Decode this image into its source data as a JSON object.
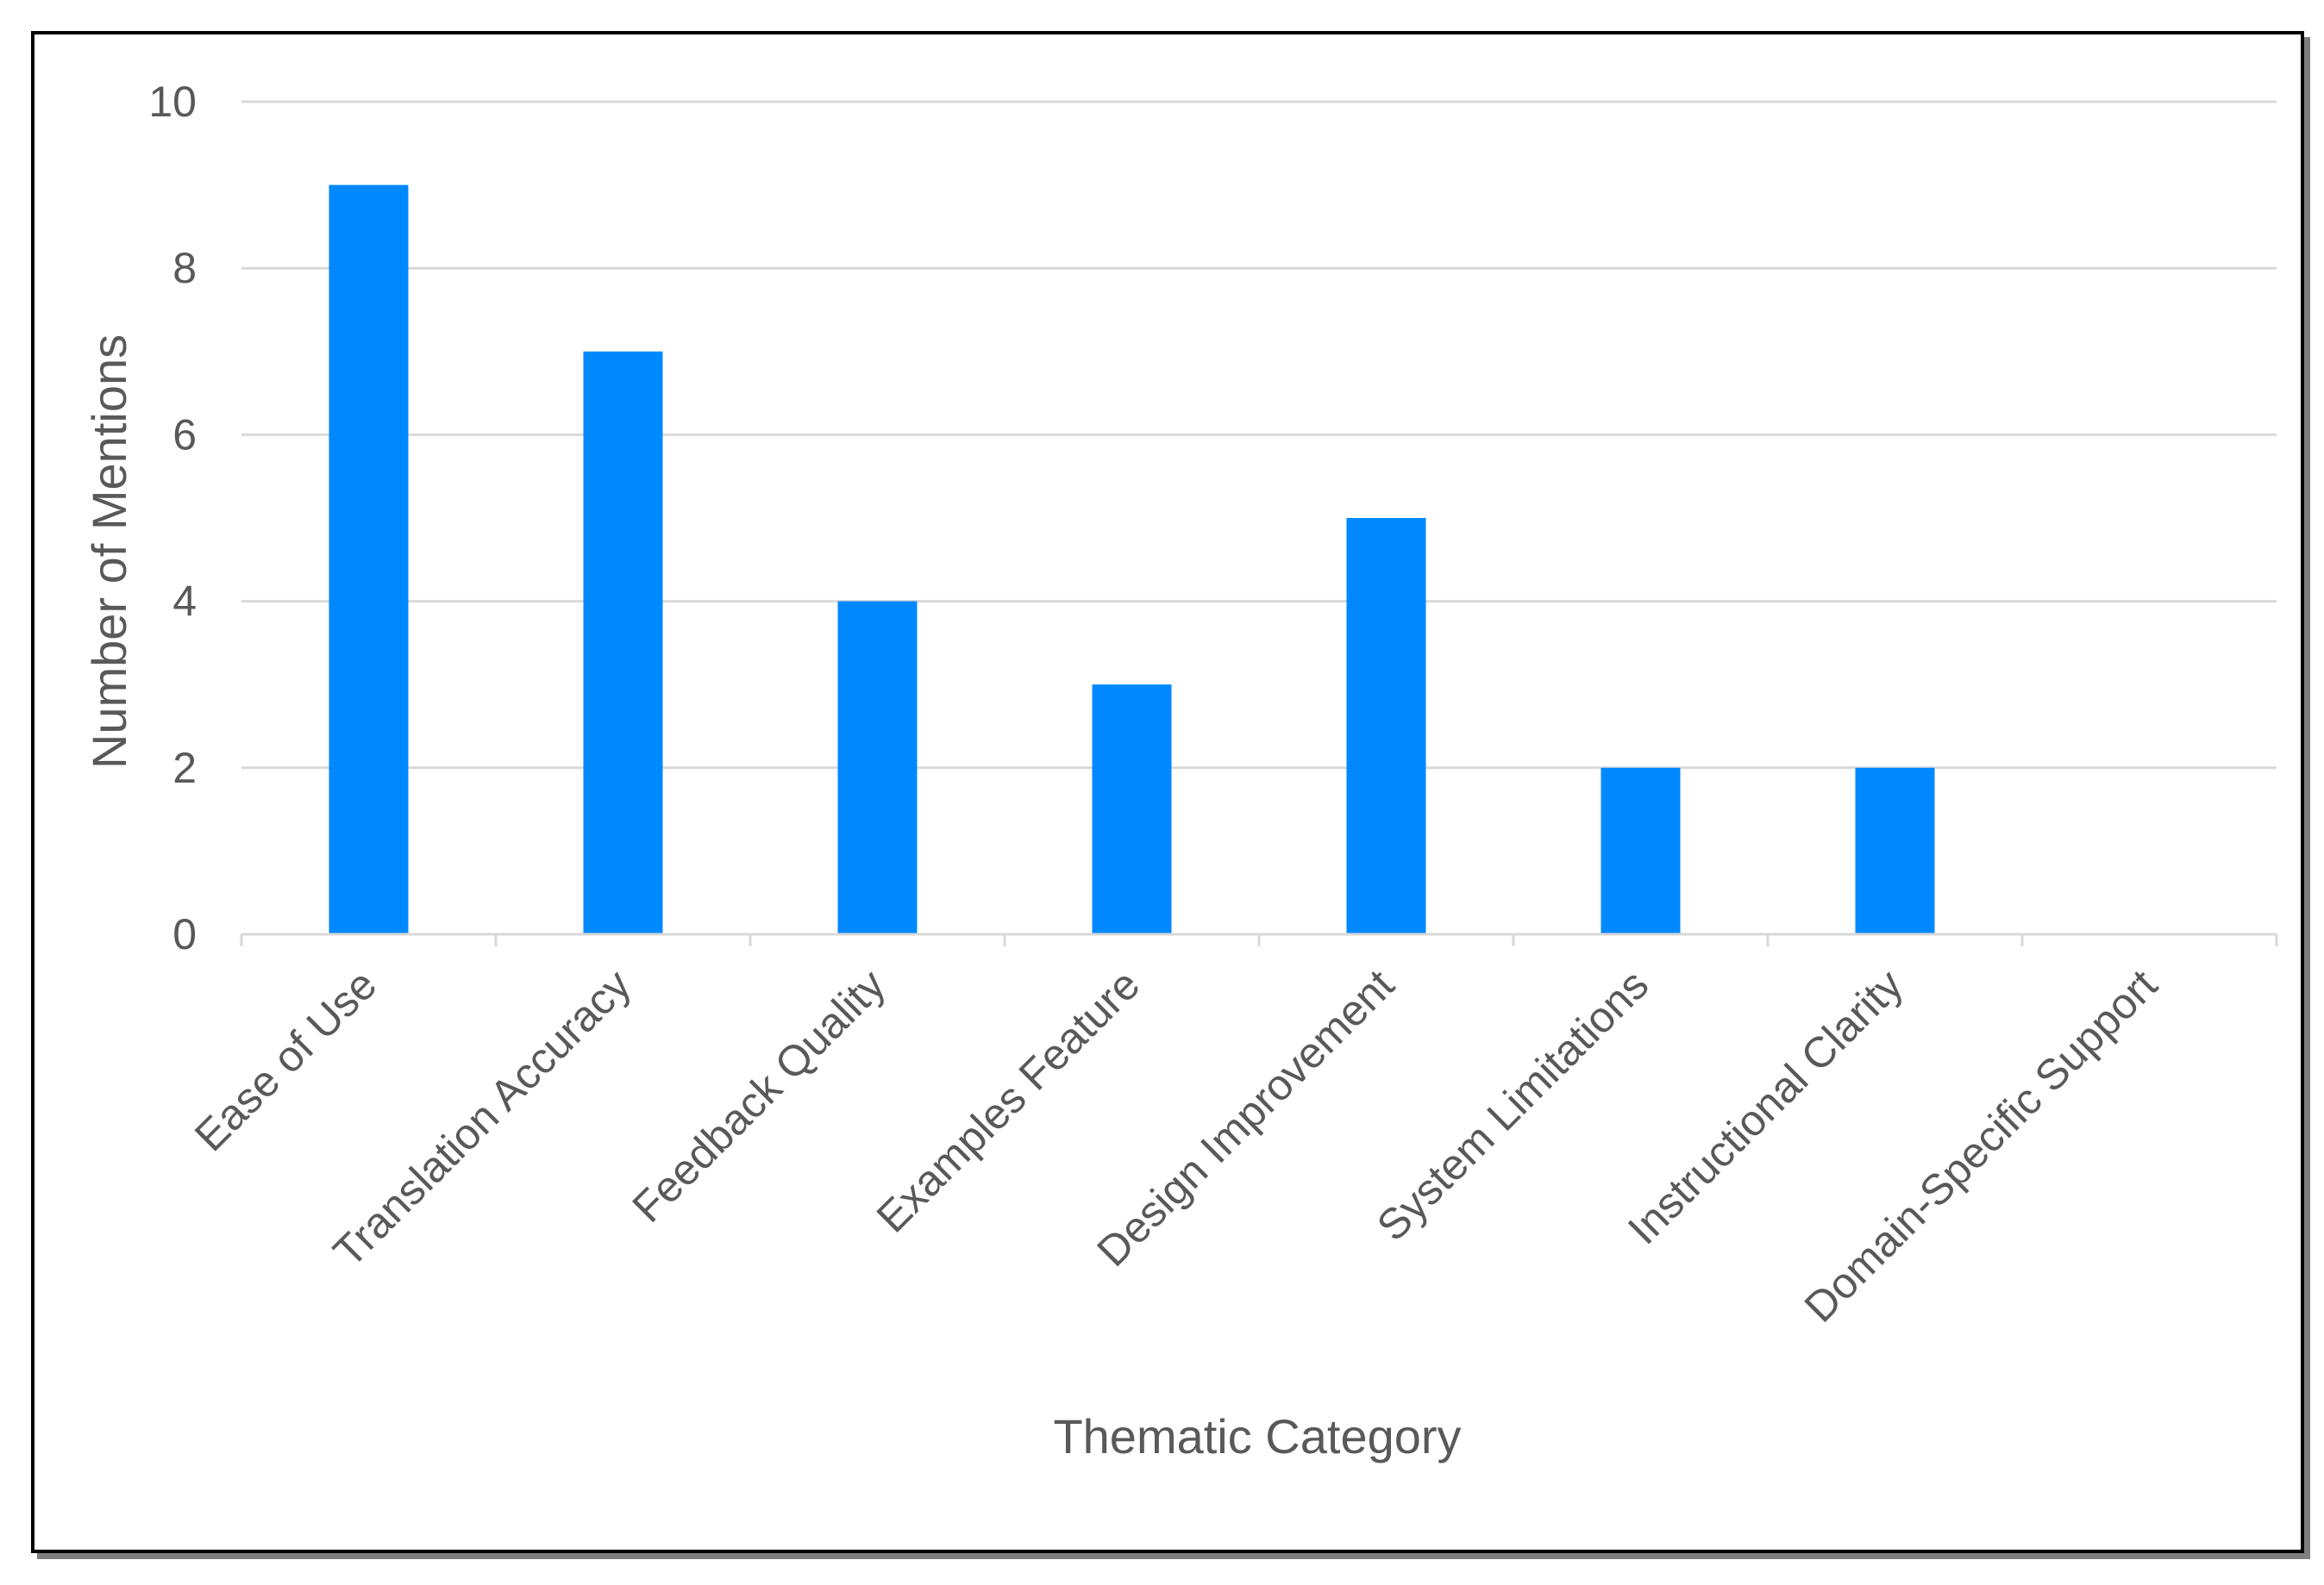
{
  "chart_data": {
    "type": "bar",
    "categories": [
      "Ease of Use",
      "Translation Accuracy",
      "Feedback Quality",
      "Examples Feature",
      "Design Improvement",
      "System Limitations",
      "Instructional Clarity",
      "Domain-Specific Support"
    ],
    "values": [
      9,
      7,
      4,
      3,
      5,
      2,
      2,
      0
    ],
    "title": "",
    "xlabel": "Thematic Category",
    "ylabel": "Number of Mentions",
    "ylim": [
      0,
      10
    ],
    "yticks": [
      0,
      2,
      4,
      6,
      8,
      10
    ],
    "grid": true,
    "legend": "none",
    "bar_color": "#0088FF",
    "grid_color": "#D9D9D9",
    "axis_color": "#D9D9D9",
    "text_color": "#595959"
  }
}
